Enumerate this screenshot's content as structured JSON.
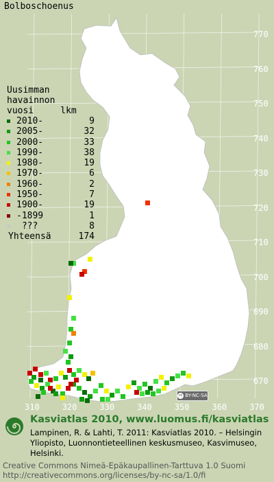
{
  "title": "Bolboschoenus",
  "legend": {
    "heading_lines": [
      "Uusimman",
      "havainnon",
      "vuosi     lkm"
    ],
    "rows": [
      {
        "label": "2010-",
        "count": "9",
        "color": "#0a6a0a"
      },
      {
        "label": "2005-",
        "count": "32",
        "color": "#109a10"
      },
      {
        "label": "2000-",
        "count": "33",
        "color": "#22c522"
      },
      {
        "label": "1990-",
        "count": "38",
        "color": "#44e044"
      },
      {
        "label": "1980-",
        "count": "19",
        "color": "#f2f200"
      },
      {
        "label": "1970-",
        "count": "6",
        "color": "#f2c200"
      },
      {
        "label": "1960-",
        "count": "2",
        "color": "#f08000"
      },
      {
        "label": "1950-",
        "count": "7",
        "color": "#f03000"
      },
      {
        "label": "1900-",
        "count": "19",
        "color": "#c80000"
      },
      {
        "label": "-1899",
        "count": "1",
        "color": "#8a0000"
      },
      {
        "label": " ???",
        "count": "8",
        "color": "#c8c8c8"
      }
    ],
    "total_label": "Yhteensä",
    "total_count": "174"
  },
  "y_labels": [
    "770",
    "760",
    "750",
    "740",
    "730",
    "720",
    "710",
    "700",
    "690",
    "680",
    "670"
  ],
  "x_labels": [
    "310",
    "320",
    "330",
    "340",
    "350",
    "360",
    "370"
  ],
  "cc_badge": "BY-NC-SA",
  "brand": "Kasviatlas 2010, www.luomus.fi/kasviatlas",
  "citation": "Lampinen, R. & Lahti, T. 2011: Kasviatlas 2010. – Helsingin Yliopisto, Luonnontieteellinen keskusmuseo, Kasvimuseo, Helsinki.",
  "license_lines": [
    "Creative Commons Nimeä-Epäkaupallinen-Tarttuva 1.0 Suomi",
    "http://creativecommons.org/licenses/by-nc-sa/1.0/fi"
  ]
}
